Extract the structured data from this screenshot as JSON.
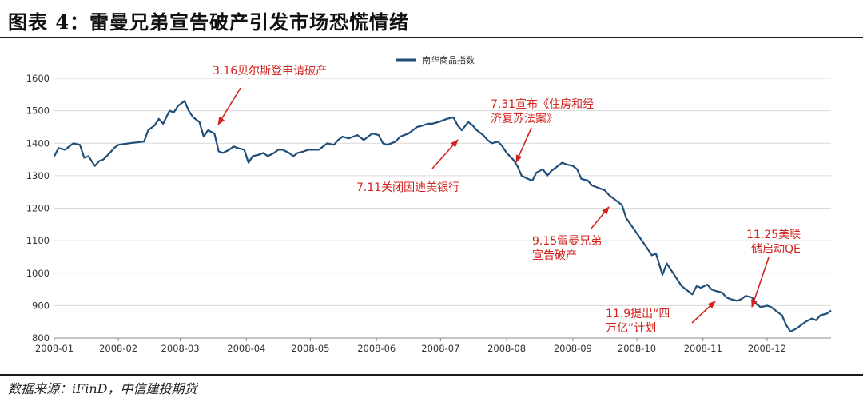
{
  "header": {
    "title": "图表 4：雷曼兄弟宣告破产引发市场恐慌情绪"
  },
  "footer": {
    "source": "数据来源：iFinD，中信建投期货"
  },
  "colors": {
    "line": "#1f4e79",
    "annotation": "#d2231e",
    "grid": "#d9d9d9"
  },
  "chart_data": {
    "type": "line",
    "legend": "南华商品指数",
    "legend_position": "top-center",
    "grid": true,
    "ylim": [
      800,
      1600
    ],
    "y_ticks": [
      800,
      900,
      1000,
      1100,
      1200,
      1300,
      1400,
      1500,
      1600
    ],
    "x_ticks": [
      "2008-01",
      "2008-02",
      "2008-03",
      "2008-04",
      "2008-05",
      "2008-06",
      "2008-07",
      "2008-08",
      "2008-09",
      "2008-10",
      "2008-11",
      "2008-12"
    ],
    "series": [
      {
        "name": "南华商品指数",
        "x": [
          "2008-01-02",
          "2008-01-04",
          "2008-01-07",
          "2008-01-09",
          "2008-01-11",
          "2008-01-14",
          "2008-01-16",
          "2008-01-18",
          "2008-01-21",
          "2008-01-23",
          "2008-01-25",
          "2008-01-28",
          "2008-01-30",
          "2008-02-01",
          "2008-02-04",
          "2008-02-06",
          "2008-02-13",
          "2008-02-15",
          "2008-02-18",
          "2008-02-20",
          "2008-02-22",
          "2008-02-25",
          "2008-02-27",
          "2008-02-29",
          "2008-03-03",
          "2008-03-05",
          "2008-03-07",
          "2008-03-10",
          "2008-03-12",
          "2008-03-14",
          "2008-03-17",
          "2008-03-19",
          "2008-03-21",
          "2008-03-24",
          "2008-03-26",
          "2008-03-28",
          "2008-03-31",
          "2008-04-02",
          "2008-04-04",
          "2008-04-07",
          "2008-04-09",
          "2008-04-11",
          "2008-04-14",
          "2008-04-16",
          "2008-04-18",
          "2008-04-21",
          "2008-04-23",
          "2008-04-25",
          "2008-04-28",
          "2008-04-30",
          "2008-05-05",
          "2008-05-07",
          "2008-05-09",
          "2008-05-12",
          "2008-05-14",
          "2008-05-16",
          "2008-05-19",
          "2008-05-21",
          "2008-05-23",
          "2008-05-26",
          "2008-05-28",
          "2008-05-30",
          "2008-06-02",
          "2008-06-04",
          "2008-06-06",
          "2008-06-10",
          "2008-06-12",
          "2008-06-16",
          "2008-06-18",
          "2008-06-20",
          "2008-06-23",
          "2008-06-25",
          "2008-06-27",
          "2008-06-30",
          "2008-07-02",
          "2008-07-04",
          "2008-07-07",
          "2008-07-09",
          "2008-07-11",
          "2008-07-14",
          "2008-07-16",
          "2008-07-18",
          "2008-07-21",
          "2008-07-23",
          "2008-07-25",
          "2008-07-28",
          "2008-07-30",
          "2008-08-01",
          "2008-08-04",
          "2008-08-06",
          "2008-08-08",
          "2008-08-11",
          "2008-08-13",
          "2008-08-15",
          "2008-08-18",
          "2008-08-20",
          "2008-08-22",
          "2008-08-25",
          "2008-08-27",
          "2008-08-29",
          "2008-09-01",
          "2008-09-03",
          "2008-09-05",
          "2008-09-08",
          "2008-09-10",
          "2008-09-12",
          "2008-09-16",
          "2008-09-18",
          "2008-09-22",
          "2008-09-24",
          "2008-09-26",
          "2008-10-06",
          "2008-10-08",
          "2008-10-10",
          "2008-10-13",
          "2008-10-15",
          "2008-10-17",
          "2008-10-20",
          "2008-10-22",
          "2008-10-24",
          "2008-10-27",
          "2008-10-29",
          "2008-10-31",
          "2008-11-03",
          "2008-11-05",
          "2008-11-07",
          "2008-11-10",
          "2008-11-12",
          "2008-11-14",
          "2008-11-17",
          "2008-11-19",
          "2008-11-21",
          "2008-11-24",
          "2008-11-26",
          "2008-11-28",
          "2008-12-01",
          "2008-12-03",
          "2008-12-05",
          "2008-12-08",
          "2008-12-10",
          "2008-12-12",
          "2008-12-15",
          "2008-12-17",
          "2008-12-19",
          "2008-12-22",
          "2008-12-24",
          "2008-12-26",
          "2008-12-29",
          "2008-12-31"
        ],
        "values": [
          1360,
          1385,
          1380,
          1390,
          1400,
          1395,
          1355,
          1360,
          1330,
          1345,
          1350,
          1370,
          1385,
          1395,
          1398,
          1400,
          1405,
          1440,
          1455,
          1475,
          1460,
          1500,
          1495,
          1515,
          1530,
          1500,
          1480,
          1465,
          1420,
          1440,
          1430,
          1375,
          1370,
          1380,
          1390,
          1385,
          1380,
          1340,
          1360,
          1365,
          1370,
          1360,
          1370,
          1380,
          1380,
          1370,
          1360,
          1370,
          1375,
          1380,
          1380,
          1390,
          1400,
          1395,
          1410,
          1420,
          1415,
          1420,
          1425,
          1410,
          1420,
          1430,
          1425,
          1400,
          1395,
          1405,
          1420,
          1430,
          1440,
          1450,
          1455,
          1460,
          1460,
          1465,
          1470,
          1475,
          1480,
          1455,
          1440,
          1465,
          1455,
          1440,
          1425,
          1410,
          1400,
          1405,
          1390,
          1370,
          1350,
          1330,
          1300,
          1290,
          1285,
          1310,
          1320,
          1300,
          1315,
          1330,
          1340,
          1335,
          1330,
          1320,
          1290,
          1285,
          1270,
          1265,
          1255,
          1240,
          1220,
          1210,
          1170,
          1075,
          1055,
          1060,
          995,
          1030,
          1010,
          980,
          960,
          950,
          935,
          960,
          955,
          965,
          950,
          945,
          940,
          925,
          920,
          915,
          920,
          930,
          925,
          905,
          895,
          900,
          895,
          885,
          870,
          840,
          820,
          830,
          840,
          850,
          860,
          855,
          870,
          875,
          885
        ]
      }
    ],
    "annotations": [
      {
        "lines": [
          "3.16贝尔斯登申请破产"
        ],
        "date": "2008-03-16"
      },
      {
        "lines": [
          "7.31宣布《住房和经",
          "济复苏法案》"
        ],
        "date": "2008-07-31"
      },
      {
        "lines": [
          "7.11关闭因迪美银行"
        ],
        "date": "2008-07-11"
      },
      {
        "lines": [
          "9.15雷曼兄弟",
          "宣告破产"
        ],
        "date": "2008-09-15"
      },
      {
        "lines": [
          "11.25美联",
          "储启动QE"
        ],
        "date": "2008-11-25"
      },
      {
        "lines": [
          "11.9提出“四",
          "万亿”计划"
        ],
        "date": "2008-11-09"
      }
    ]
  }
}
